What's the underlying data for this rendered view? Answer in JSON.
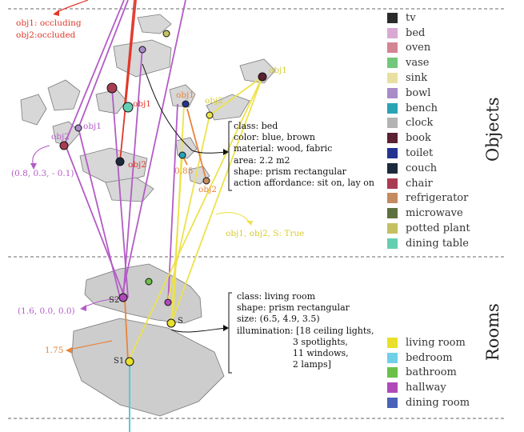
{
  "objects_legend": {
    "items": [
      {
        "label": "tv",
        "color": "#2b2b2b"
      },
      {
        "label": "bed",
        "color": "#d9a9d4"
      },
      {
        "label": "oven",
        "color": "#d48593"
      },
      {
        "label": "vase",
        "color": "#74c77a"
      },
      {
        "label": "sink",
        "color": "#e8e0a0"
      },
      {
        "label": "bowl",
        "color": "#a98bc8"
      },
      {
        "label": "bench",
        "color": "#2aa3b5"
      },
      {
        "label": "clock",
        "color": "#b3b3b3"
      },
      {
        "label": "book",
        "color": "#5a2232"
      },
      {
        "label": "toilet",
        "color": "#23338f"
      },
      {
        "label": "couch",
        "color": "#1b2a3c"
      },
      {
        "label": "chair",
        "color": "#a83c52"
      },
      {
        "label": "refrigerator",
        "color": "#c48a62"
      },
      {
        "label": "microwave",
        "color": "#5f7040"
      },
      {
        "label": "potted plant",
        "color": "#c5c060"
      },
      {
        "label": "dining table",
        "color": "#63cfb0"
      }
    ]
  },
  "rooms_legend": {
    "items": [
      {
        "label": "living room",
        "color": "#e8e02a"
      },
      {
        "label": "bedroom",
        "color": "#6fd0e8"
      },
      {
        "label": "bathroom",
        "color": "#6bc04a"
      },
      {
        "label": "hallway",
        "color": "#b04ab8"
      },
      {
        "label": "dining room",
        "color": "#4a62b8"
      }
    ]
  },
  "sections": {
    "objects": "Objects",
    "rooms": "Rooms"
  },
  "object_info": [
    "class: bed",
    "color: blue, brown",
    "material: wood, fabric",
    "area: 2.2 m2",
    "shape: prism rectangular",
    "action affordance: sit on, lay on"
  ],
  "room_info": [
    "class: living room",
    "shape: prism rectangular",
    "size: (6.5, 4.9, 3.5)",
    "illumination: [18 ceiling lights,",
    "                    3 spotlights,",
    "                    11 windows,",
    "                    2 lamps]"
  ],
  "labels": {
    "occluding": "obj1: occluding",
    "occluded": "obj2:occluded",
    "obj1_a": "obj1",
    "obj1_b": "obj1",
    "obj1_c": "obj1",
    "obj1_d": "obj1",
    "obj2_a": "obj2",
    "obj2_b": "obj2",
    "obj2_c": "obj2",
    "obj2_d": "obj2",
    "coord_obj": "(0.8, 0.3, - 0.1)",
    "coord_room": "(1.6, 0.0, 0.0)",
    "dist_085": "0.85",
    "dist_175": "1.75",
    "relation": "obj1, obj2, S: True",
    "room_s1": "S1",
    "room_s2": "S2",
    "room_s3": "S"
  },
  "colors": {
    "purple": "#b35cc6",
    "red": "#e0382a",
    "orange": "#e8843a",
    "yellow": "#ede24a",
    "cyan": "#5ac8d8",
    "black": "#111111"
  }
}
